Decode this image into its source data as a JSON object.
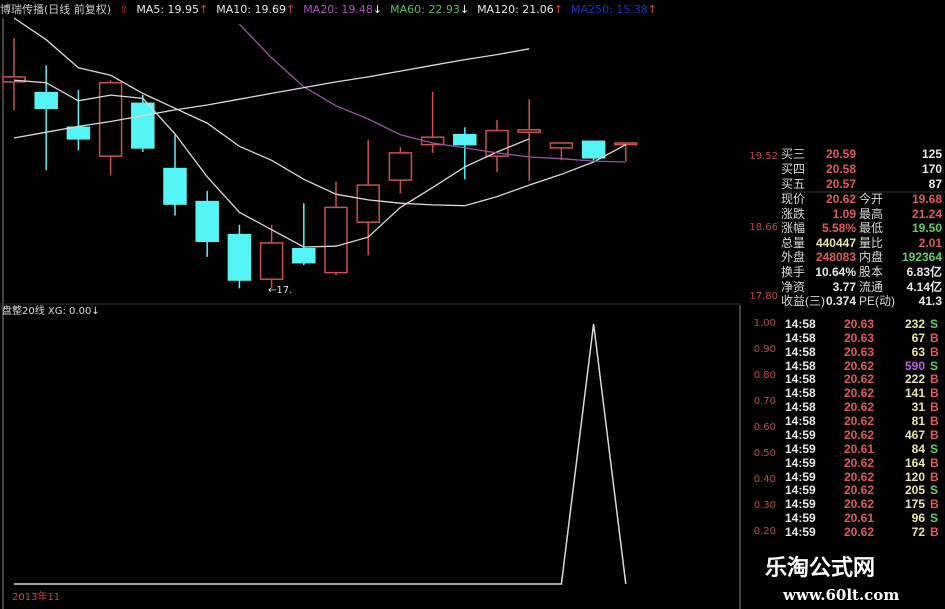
{
  "header": {
    "title": "博瑞传播(日线 前复权)",
    "ma": [
      {
        "label": "MA5: 19.95",
        "arrow": "↑",
        "color": "#e8e8e8"
      },
      {
        "label": "MA10: 19.69",
        "arrow": "↑",
        "color": "#e8e8e8"
      },
      {
        "label": "MA20: 19.48",
        "arrow": "↓",
        "color": "#b050c0"
      },
      {
        "label": "MA60: 22.93",
        "arrow": "↓",
        "color": "#50c050"
      },
      {
        "label": "MA120: 21.06",
        "arrow": "↑",
        "color": "#e8e8e8"
      },
      {
        "label": "MA250: 15.38",
        "arrow": "↑",
        "color": "#2030c0"
      }
    ]
  },
  "price_axis": [
    "19.52",
    "18.66",
    "17.80"
  ],
  "low_label": "←17.",
  "indicator": {
    "title": "盘整20线 XG: 0.00",
    "arrow": "↓",
    "axis": [
      "1.00",
      "0.90",
      "0.80",
      "0.70",
      "0.60",
      "0.50",
      "0.40",
      "0.30",
      "0.20"
    ]
  },
  "date_label": "2013年11",
  "colors": {
    "up": "#c85050",
    "down": "#55f5f5",
    "ma5": "#d8d8d8",
    "ma10": "#d8d8d8",
    "ma20": "#a050a0",
    "ma120": "#d8d8d8",
    "xg": "#d8d8d8"
  },
  "chart_data": [
    {
      "type": "candlestick",
      "ylim": [
        17.8,
        21.3
      ],
      "candles": [
        {
          "o": 20.43,
          "h": 20.96,
          "l": 20.09,
          "c": 20.49
        },
        {
          "o": 20.3,
          "h": 20.63,
          "l": 19.36,
          "c": 20.11
        },
        {
          "o": 19.88,
          "h": 20.33,
          "l": 19.6,
          "c": 19.74
        },
        {
          "o": 19.53,
          "h": 20.45,
          "l": 19.3,
          "c": 20.42
        },
        {
          "o": 20.17,
          "h": 20.27,
          "l": 19.58,
          "c": 19.63
        },
        {
          "o": 19.38,
          "h": 19.79,
          "l": 18.81,
          "c": 18.95
        },
        {
          "o": 18.98,
          "h": 19.11,
          "l": 18.31,
          "c": 18.5
        },
        {
          "o": 18.58,
          "h": 18.7,
          "l": 17.93,
          "c": 18.03
        },
        {
          "o": 18.04,
          "h": 18.7,
          "l": 17.93,
          "c": 18.48
        },
        {
          "o": 18.41,
          "h": 18.96,
          "l": 18.21,
          "c": 18.24
        },
        {
          "o": 18.12,
          "h": 19.22,
          "l": 18.09,
          "c": 18.91
        },
        {
          "o": 18.73,
          "h": 19.73,
          "l": 18.33,
          "c": 19.18
        },
        {
          "o": 19.24,
          "h": 19.64,
          "l": 19.08,
          "c": 19.57
        },
        {
          "o": 19.67,
          "h": 20.31,
          "l": 19.57,
          "c": 19.76
        },
        {
          "o": 19.79,
          "h": 19.88,
          "l": 19.25,
          "c": 19.67
        },
        {
          "o": 19.53,
          "h": 19.97,
          "l": 19.34,
          "c": 19.84
        },
        {
          "o": 19.82,
          "h": 20.22,
          "l": 19.23,
          "c": 19.85
        },
        {
          "o": 19.63,
          "h": 19.69,
          "l": 19.48,
          "c": 19.69
        },
        {
          "o": 19.71,
          "h": 19.71,
          "l": 19.48,
          "c": 19.51
        },
        {
          "o": 19.67,
          "h": 19.69,
          "l": 19.47,
          "c": 19.69
        }
      ],
      "series": [
        {
          "name": "MA5",
          "values": [
            20.45,
            20.42,
            20.2,
            20.27,
            20.23,
            19.8,
            19.28,
            18.85,
            18.64,
            18.43,
            18.44,
            18.55,
            18.91,
            19.15,
            19.4,
            19.58,
            19.74,
            null,
            null,
            null
          ]
        },
        {
          "name": "MA10",
          "values": [
            21.32,
            20.94,
            20.6,
            20.51,
            20.29,
            20.11,
            19.93,
            19.65,
            19.48,
            19.25,
            19.07,
            19.0,
            18.96,
            18.94,
            18.93,
            19.04,
            19.18,
            19.31,
            19.46,
            19.67
          ]
        },
        {
          "name": "MA20",
          "values": [
            null,
            null,
            null,
            null,
            null,
            null,
            null,
            21.13,
            20.72,
            20.37,
            20.14,
            19.98,
            19.79,
            19.69,
            19.63,
            19.57,
            19.52,
            19.5,
            19.47,
            19.46
          ]
        },
        {
          "name": "MA120",
          "values": [
            19.75,
            19.82,
            19.89,
            19.95,
            20.02,
            20.09,
            20.15,
            20.22,
            20.29,
            20.36,
            20.43,
            20.49,
            20.56,
            20.63,
            20.7,
            20.76,
            20.83,
            null,
            null,
            null
          ]
        }
      ]
    },
    {
      "type": "line",
      "ylim": [
        0,
        1
      ],
      "series": [
        {
          "name": "XG",
          "values": [
            0,
            0,
            0,
            0,
            0,
            0,
            0,
            0,
            0,
            0,
            0,
            0,
            0,
            0,
            0,
            0,
            0,
            0,
            1,
            0
          ]
        }
      ]
    }
  ],
  "quote": {
    "bids": [
      {
        "label": "买三",
        "price": "20.59",
        "vol": "125"
      },
      {
        "label": "买四",
        "price": "20.58",
        "vol": "170"
      },
      {
        "label": "买五",
        "price": "20.57",
        "vol": "87"
      }
    ],
    "stats": [
      {
        "l1": "现价",
        "v1": "20.62",
        "c1": "red",
        "l2": "今开",
        "v2": "19.68",
        "c2": "red"
      },
      {
        "l1": "涨跌",
        "v1": "1.09",
        "c1": "red",
        "l2": "最高",
        "v2": "21.24",
        "c2": "red"
      },
      {
        "l1": "涨幅",
        "v1": "5.58%",
        "c1": "red",
        "l2": "最低",
        "v2": "19.50",
        "c2": "grn"
      },
      {
        "l1": "总量",
        "v1": "440447",
        "c1": "yel",
        "l2": "量比",
        "v2": "2.01",
        "c2": "red"
      },
      {
        "l1": "外盘",
        "v1": "248083",
        "c1": "red",
        "l2": "内盘",
        "v2": "192364",
        "c2": "grn"
      },
      {
        "l1": "换手",
        "v1": "10.64%",
        "c1": "wht",
        "l2": "股本",
        "v2": "6.83亿",
        "c2": "wht"
      },
      {
        "l1": "净资",
        "v1": "3.77",
        "c1": "wht",
        "l2": "流通",
        "v2": "4.14亿",
        "c2": "wht"
      },
      {
        "l1": "收益(三)",
        "v1": "0.374",
        "c1": "wht",
        "l2": "PE(动)",
        "v2": "41.3",
        "c2": "wht"
      }
    ]
  },
  "trades": [
    {
      "t": "14:58",
      "p": "20.63",
      "v": "232",
      "f": "S"
    },
    {
      "t": "14:58",
      "p": "20.63",
      "v": "67",
      "f": "B"
    },
    {
      "t": "14:58",
      "p": "20.63",
      "v": "63",
      "f": "B"
    },
    {
      "t": "14:58",
      "p": "20.62",
      "v": "590",
      "f": "S",
      "big": true
    },
    {
      "t": "14:58",
      "p": "20.62",
      "v": "222",
      "f": "B"
    },
    {
      "t": "14:58",
      "p": "20.62",
      "v": "141",
      "f": "B"
    },
    {
      "t": "14:58",
      "p": "20.62",
      "v": "31",
      "f": "B"
    },
    {
      "t": "14:58",
      "p": "20.62",
      "v": "81",
      "f": "B"
    },
    {
      "t": "14:59",
      "p": "20.62",
      "v": "467",
      "f": "B"
    },
    {
      "t": "14:59",
      "p": "20.61",
      "v": "84",
      "f": "S"
    },
    {
      "t": "14:59",
      "p": "20.62",
      "v": "164",
      "f": "B"
    },
    {
      "t": "14:59",
      "p": "20.62",
      "v": "120",
      "f": "B"
    },
    {
      "t": "14:59",
      "p": "20.62",
      "v": "205",
      "f": "S"
    },
    {
      "t": "14:59",
      "p": "20.62",
      "v": "175",
      "f": "B"
    },
    {
      "t": "14:59",
      "p": "20.61",
      "v": "96",
      "f": "S"
    },
    {
      "t": "14:59",
      "p": "20.62",
      "v": "72",
      "f": "B"
    }
  ],
  "watermark": {
    "name": "乐淘公式网",
    "url": "www.60lt.com"
  }
}
